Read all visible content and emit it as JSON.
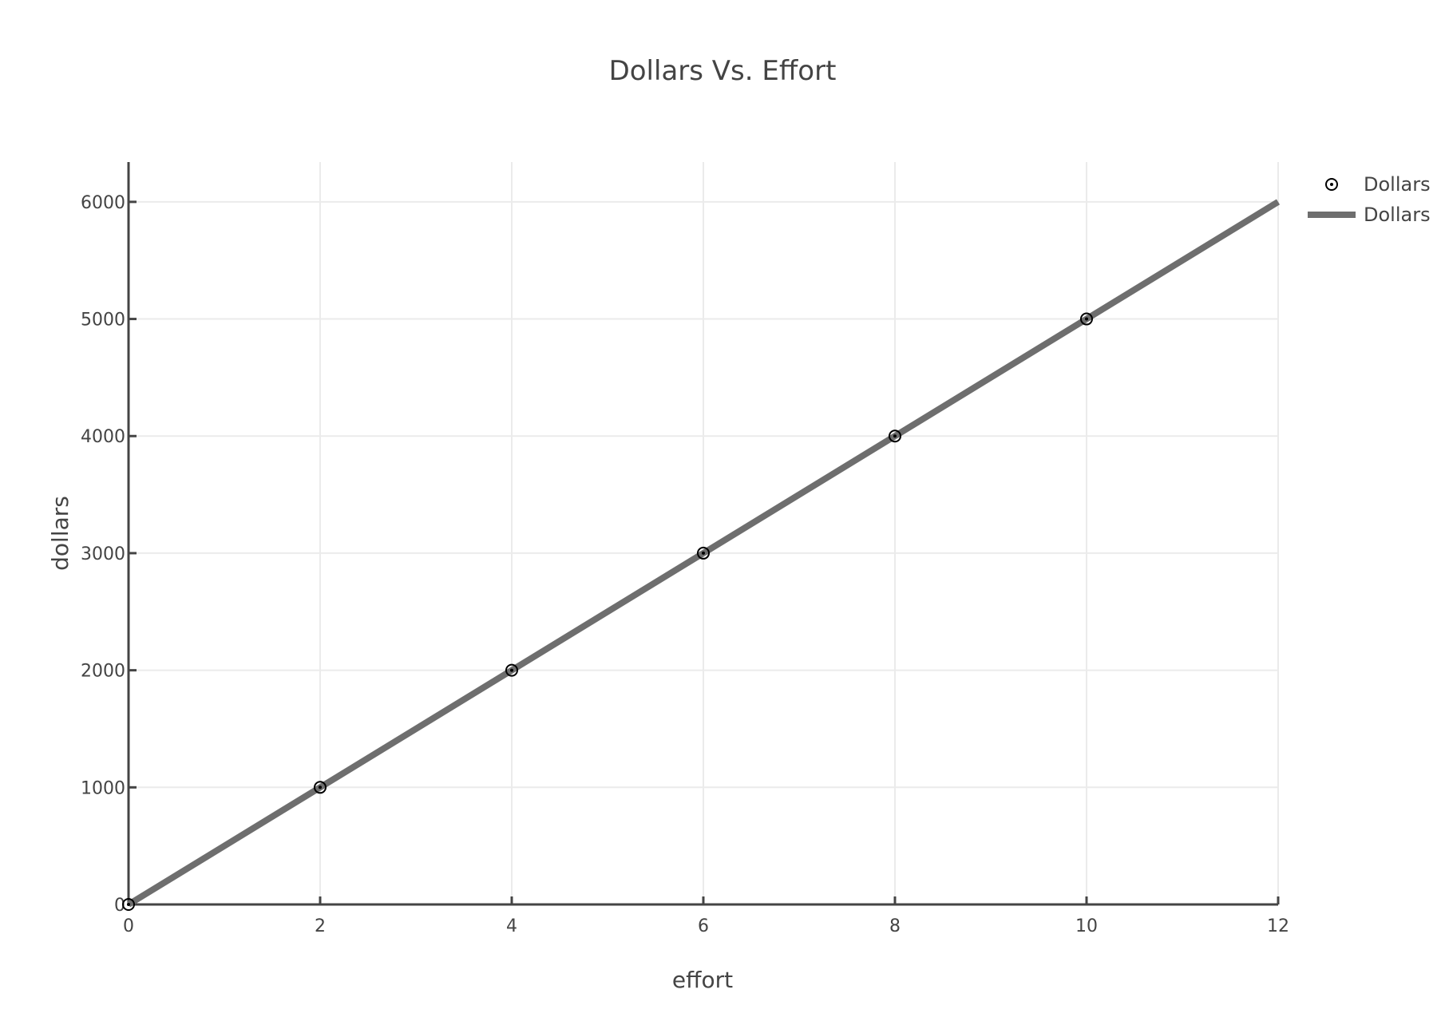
{
  "chart_data": {
    "type": "scatter",
    "title": "Dollars Vs. Effort",
    "xlabel": "effort",
    "ylabel": "dollars",
    "xlim": [
      0,
      12
    ],
    "ylim": [
      0,
      6340
    ],
    "x_ticks": [
      0,
      2,
      4,
      6,
      8,
      10,
      12
    ],
    "y_ticks": [
      0,
      1000,
      2000,
      3000,
      4000,
      5000,
      6000
    ],
    "grid": true,
    "legend_position": "top-right",
    "series": [
      {
        "name": "Dollars",
        "mode": "markers",
        "marker": "circle-dot",
        "color": "#000000",
        "x": [
          0,
          2,
          4,
          6,
          8,
          10
        ],
        "y": [
          0,
          1000,
          2000,
          3000,
          4000,
          5000
        ]
      },
      {
        "name": "Dollars",
        "mode": "lines",
        "color": "#6e6e6e",
        "x": [
          0,
          12
        ],
        "y": [
          0,
          6000
        ]
      }
    ]
  }
}
